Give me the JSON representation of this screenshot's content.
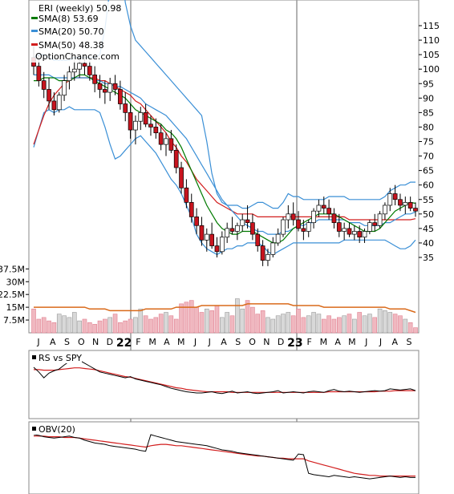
{
  "chart_data": [
    {
      "type": "candlestick",
      "panel": "price",
      "title": "ERI (weekly) 50.98",
      "watermark": "OptionChance.com",
      "legend": [
        {
          "label": "SMA(8) 53.69",
          "color": "#007a00"
        },
        {
          "label": "SMA(20) 50.70",
          "color": "#3a8fd6"
        },
        {
          "label": "SMA(50) 48.38",
          "color": "#d21e1e"
        }
      ],
      "legend_position": "top-left",
      "yticks": [
        35,
        40,
        45,
        50,
        55,
        60,
        65,
        70,
        75,
        80,
        85,
        90,
        95,
        100,
        105,
        110,
        115
      ],
      "ylim": [
        30,
        120
      ],
      "xticks": [
        "J",
        "A",
        "S",
        "O",
        "N",
        "D",
        "22",
        "F",
        "M",
        "A",
        "M",
        "J",
        "J",
        "A",
        "S",
        "O",
        "N",
        "D",
        "23",
        "F",
        "M",
        "A",
        "M",
        "J",
        "J",
        "A",
        "S"
      ],
      "grid": false,
      "ohlc": [
        [
          104,
          108,
          98,
          101
        ],
        [
          101,
          105,
          94,
          96
        ],
        [
          96,
          99,
          90,
          93
        ],
        [
          93,
          97,
          86,
          89
        ],
        [
          89,
          92,
          84,
          86
        ],
        [
          86,
          92,
          85,
          91
        ],
        [
          91,
          98,
          89,
          96
        ],
        [
          96,
          101,
          93,
          99
        ],
        [
          99,
          103,
          96,
          100
        ],
        [
          100,
          104,
          97,
          102
        ],
        [
          102,
          105,
          98,
          101
        ],
        [
          101,
          103,
          96,
          98
        ],
        [
          98,
          101,
          92,
          95
        ],
        [
          95,
          98,
          90,
          93
        ],
        [
          93,
          96,
          88,
          92
        ],
        [
          92,
          97,
          89,
          95
        ],
        [
          95,
          98,
          91,
          93
        ],
        [
          93,
          96,
          86,
          88
        ],
        [
          88,
          92,
          82,
          85
        ],
        [
          85,
          88,
          76,
          79
        ],
        [
          79,
          84,
          74,
          82
        ],
        [
          82,
          87,
          79,
          85
        ],
        [
          85,
          88,
          80,
          81
        ],
        [
          81,
          84,
          77,
          80
        ],
        [
          80,
          83,
          76,
          78
        ],
        [
          78,
          81,
          72,
          74
        ],
        [
          74,
          78,
          70,
          76
        ],
        [
          76,
          79,
          71,
          72
        ],
        [
          72,
          74,
          64,
          66
        ],
        [
          66,
          68,
          57,
          59
        ],
        [
          59,
          62,
          52,
          54
        ],
        [
          54,
          57,
          47,
          49
        ],
        [
          49,
          52,
          43,
          46
        ],
        [
          46,
          49,
          39,
          41
        ],
        [
          41,
          45,
          37,
          43
        ],
        [
          43,
          47,
          38,
          39
        ],
        [
          39,
          42,
          35,
          37
        ],
        [
          37,
          44,
          36,
          42
        ],
        [
          42,
          47,
          40,
          45
        ],
        [
          45,
          49,
          43,
          44
        ],
        [
          44,
          47,
          41,
          46
        ],
        [
          46,
          50,
          44,
          48
        ],
        [
          48,
          53,
          45,
          47
        ],
        [
          47,
          50,
          41,
          43
        ],
        [
          43,
          45,
          37,
          39
        ],
        [
          39,
          41,
          32,
          34
        ],
        [
          34,
          38,
          32,
          36
        ],
        [
          36,
          42,
          35,
          40
        ],
        [
          40,
          45,
          39,
          43
        ],
        [
          43,
          49,
          42,
          48
        ],
        [
          48,
          53,
          45,
          50
        ],
        [
          50,
          54,
          46,
          48
        ],
        [
          48,
          51,
          44,
          45
        ],
        [
          45,
          48,
          41,
          44
        ],
        [
          44,
          48,
          42,
          47
        ],
        [
          47,
          52,
          45,
          51
        ],
        [
          51,
          55,
          49,
          53
        ],
        [
          53,
          56,
          50,
          52
        ],
        [
          52,
          55,
          48,
          50
        ],
        [
          50,
          52,
          45,
          47
        ],
        [
          47,
          50,
          42,
          44
        ],
        [
          44,
          47,
          41,
          45
        ],
        [
          45,
          47,
          42,
          43
        ],
        [
          43,
          46,
          41,
          44
        ],
        [
          44,
          46,
          40,
          42
        ],
        [
          42,
          45,
          40,
          44
        ],
        [
          44,
          48,
          43,
          47
        ],
        [
          47,
          50,
          44,
          46
        ],
        [
          46,
          51,
          45,
          50
        ],
        [
          50,
          54,
          48,
          53
        ],
        [
          53,
          59,
          51,
          57
        ],
        [
          57,
          60,
          53,
          55
        ],
        [
          55,
          57,
          51,
          53
        ],
        [
          53,
          56,
          50,
          54
        ],
        [
          54,
          56,
          51,
          52
        ],
        [
          52,
          54,
          49,
          51
        ]
      ],
      "sma8": [
        96,
        96,
        97,
        97,
        97,
        96,
        96,
        96,
        97,
        98,
        98,
        97,
        96,
        95,
        94,
        93,
        92,
        91,
        90,
        88,
        86,
        85,
        84,
        83,
        82,
        81,
        79,
        78,
        76,
        73,
        69,
        65,
        61,
        57,
        53,
        50,
        47,
        45,
        44,
        43,
        43,
        44,
        44,
        44,
        43,
        42,
        41,
        40,
        40,
        41,
        43,
        45,
        46,
        47,
        48,
        49,
        50,
        50,
        50,
        50,
        49,
        48,
        47,
        46,
        45,
        44,
        44,
        44,
        45,
        47,
        49,
        51,
        52,
        53,
        54,
        53.69
      ],
      "sma20": [
        98,
        98,
        98,
        98,
        97,
        97,
        97,
        97,
        97,
        97,
        97,
        97,
        96,
        96,
        95,
        95,
        94,
        94,
        93,
        92,
        91,
        90,
        88,
        87,
        86,
        85,
        84,
        82,
        80,
        78,
        76,
        73,
        70,
        67,
        64,
        61,
        58,
        55,
        53,
        51,
        49,
        47,
        46,
        45,
        44,
        44,
        43,
        43,
        43,
        44,
        44,
        45,
        46,
        46,
        47,
        47,
        48,
        48,
        48,
        48,
        48,
        48,
        47,
        47,
        47,
        46,
        46,
        46,
        46,
        47,
        47,
        48,
        49,
        50,
        50,
        50.7
      ],
      "sma50": [
        74,
        79,
        84,
        88,
        91,
        93,
        95,
        96,
        97,
        97,
        97,
        97,
        97,
        96,
        96,
        95,
        94,
        93,
        92,
        91,
        89,
        88,
        86,
        84,
        82,
        80,
        78,
        75,
        73,
        70,
        68,
        65,
        62,
        60,
        58,
        56,
        54,
        53,
        52,
        51,
        50,
        50,
        50,
        50,
        49,
        49,
        49,
        49,
        49,
        49,
        49,
        49,
        49,
        49,
        49,
        49,
        49,
        49,
        49,
        49,
        49,
        49,
        48,
        48,
        48,
        48,
        48,
        48,
        48,
        48,
        48,
        48,
        48,
        48,
        48,
        48.38
      ],
      "bb_upper": [
        104,
        105,
        105,
        104,
        103,
        103,
        103,
        103,
        104,
        104,
        104,
        104,
        104,
        105,
        114,
        128,
        137,
        138,
        123,
        115,
        110,
        108,
        106,
        104,
        102,
        100,
        98,
        96,
        94,
        92,
        90,
        88,
        86,
        84,
        75,
        64,
        57,
        54,
        53,
        53,
        53,
        52,
        52,
        53,
        54,
        54,
        53,
        52,
        52,
        54,
        57,
        56,
        56,
        55,
        55,
        55,
        55,
        55,
        56,
        56,
        56,
        56,
        55,
        55,
        55,
        55,
        55,
        55,
        55,
        56,
        58,
        59,
        60,
        60,
        61,
        61
      ],
      "bb_lower": [
        73,
        79,
        85,
        86,
        85,
        86,
        86,
        87,
        86,
        86,
        86,
        86,
        86,
        85,
        80,
        74,
        69,
        70,
        72,
        74,
        76,
        77,
        75,
        73,
        71,
        68,
        65,
        62,
        60,
        57,
        53,
        49,
        43,
        40,
        38,
        37,
        36,
        37,
        38,
        38,
        39,
        39,
        40,
        40,
        40,
        39,
        37,
        36,
        37,
        38,
        39,
        40,
        40,
        40,
        40,
        40,
        40,
        40,
        40,
        40,
        40,
        41,
        41,
        41,
        41,
        41,
        41,
        41,
        41,
        41,
        40,
        39,
        38,
        38,
        39,
        41
      ]
    },
    {
      "type": "bar",
      "panel": "volume",
      "yticks": [
        "37.5M",
        "30M",
        "22.5M",
        "15M",
        "7.5M"
      ],
      "ylim": [
        0,
        40
      ],
      "values": [
        14,
        8,
        9,
        7,
        6,
        11,
        10,
        9,
        12,
        7,
        8,
        6,
        5,
        7,
        8,
        9,
        11,
        6,
        7,
        8,
        9,
        14,
        10,
        8,
        9,
        11,
        12,
        10,
        8,
        17,
        18,
        19,
        15,
        12,
        14,
        13,
        16,
        9,
        12,
        10,
        20,
        14,
        19,
        15,
        11,
        13,
        9,
        8,
        10,
        11,
        12,
        10,
        14,
        9,
        10,
        12,
        11,
        8,
        10,
        8,
        9,
        10,
        11,
        8,
        12,
        10,
        11,
        9,
        14,
        13,
        12,
        11,
        10,
        8,
        6,
        3
      ],
      "avg": [
        15,
        15,
        15,
        15,
        15,
        15,
        15,
        15,
        15,
        15,
        15,
        14,
        14,
        14,
        14,
        13,
        13,
        13,
        13,
        13,
        13,
        13,
        14,
        14,
        14,
        14,
        14,
        14,
        15,
        15,
        15,
        15,
        15,
        16,
        16,
        16,
        16,
        16,
        16,
        16,
        16,
        16,
        17,
        17,
        17,
        17,
        17,
        17,
        17,
        17,
        17,
        16,
        16,
        16,
        16,
        16,
        16,
        15,
        15,
        15,
        15,
        15,
        15,
        15,
        15,
        15,
        15,
        15,
        15,
        15,
        14,
        14,
        14,
        14,
        13,
        12
      ]
    },
    {
      "type": "line",
      "panel": "relative-strength",
      "label": "RS vs SPY",
      "series": [
        {
          "name": "RS vs SPY",
          "values": [
            88,
            80,
            70,
            78,
            82,
            85,
            92,
            98,
            102,
            100,
            95,
            90,
            85,
            80,
            78,
            76,
            74,
            72,
            70,
            72,
            68,
            66,
            64,
            62,
            60,
            58,
            55,
            52,
            50,
            48,
            46,
            45,
            44,
            44,
            45,
            46,
            44,
            43,
            45,
            47,
            44,
            45,
            46,
            44,
            43,
            44,
            45,
            46,
            48,
            44,
            45,
            46,
            45,
            44,
            46,
            47,
            46,
            45,
            48,
            50,
            47,
            46,
            47,
            46,
            45,
            46,
            47,
            48,
            47,
            48,
            51,
            50,
            49,
            50,
            51,
            48
          ]
        },
        {
          "name": "SMA",
          "values": [
            84,
            84,
            83,
            83,
            83,
            84,
            85,
            86,
            87,
            87,
            86,
            85,
            84,
            82,
            80,
            78,
            76,
            74,
            72,
            71,
            69,
            67,
            65,
            63,
            61,
            59,
            57,
            55,
            53,
            52,
            50,
            49,
            48,
            47,
            46,
            46,
            46,
            46,
            46,
            45,
            45,
            45,
            45,
            45,
            45,
            45,
            45,
            45,
            45,
            45,
            45,
            45,
            45,
            45,
            45,
            45,
            45,
            45,
            46,
            46,
            46,
            46,
            46,
            46,
            46,
            46,
            46,
            46,
            47,
            47,
            47,
            48,
            48,
            48,
            48,
            48
          ]
        }
      ]
    },
    {
      "type": "line",
      "panel": "obv",
      "label": "OBV(20)",
      "series": [
        {
          "name": "OBV(20)",
          "values": [
            86,
            85,
            83,
            82,
            81,
            82,
            83,
            84,
            82,
            81,
            78,
            76,
            74,
            73,
            72,
            70,
            69,
            68,
            67,
            66,
            65,
            63,
            62,
            86,
            84,
            82,
            80,
            78,
            76,
            75,
            74,
            73,
            72,
            71,
            70,
            68,
            66,
            64,
            63,
            62,
            60,
            59,
            58,
            57,
            56,
            55,
            54,
            53,
            52,
            51,
            50,
            49,
            58,
            57,
            30,
            28,
            27,
            26,
            25,
            27,
            26,
            25,
            24,
            25,
            24,
            23,
            22,
            23,
            24,
            25,
            26,
            25,
            24,
            25,
            24,
            24
          ]
        },
        {
          "name": "SMA",
          "values": [
            84,
            84,
            84,
            83,
            83,
            83,
            82,
            82,
            82,
            81,
            80,
            79,
            78,
            77,
            76,
            75,
            74,
            73,
            72,
            71,
            70,
            69,
            68,
            70,
            71,
            72,
            72,
            71,
            70,
            70,
            69,
            68,
            67,
            66,
            65,
            64,
            63,
            62,
            61,
            60,
            59,
            58,
            57,
            56,
            55,
            55,
            54,
            53,
            52,
            52,
            51,
            51,
            51,
            51,
            48,
            46,
            44,
            42,
            40,
            38,
            36,
            34,
            32,
            30,
            29,
            28,
            27,
            27,
            26,
            26,
            26,
            26,
            26,
            26,
            26,
            26
          ]
        }
      ]
    }
  ]
}
